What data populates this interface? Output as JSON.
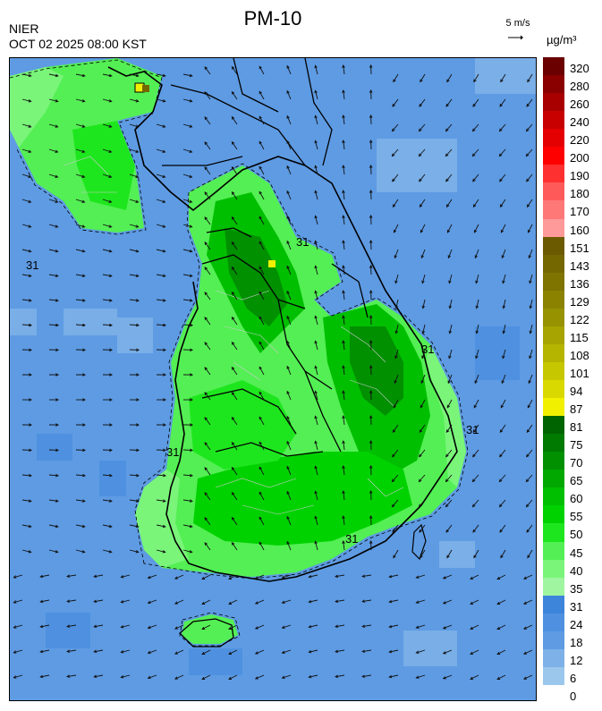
{
  "header": {
    "title": "PM-10",
    "agency": "NIER",
    "timestamp": "OCT 02 2025 08:00 KST",
    "wind_reference": "5 m/s",
    "unit": "µg/m³"
  },
  "map": {
    "contour_label": "31",
    "arrow_color": "#111111",
    "land_outline_color": "#000000",
    "district_line_color": "#cccccc"
  },
  "legend": {
    "levels": [
      {
        "label": "320",
        "color": "#6b0000"
      },
      {
        "label": "280",
        "color": "#8a0000"
      },
      {
        "label": "260",
        "color": "#a80000"
      },
      {
        "label": "240",
        "color": "#c80000"
      },
      {
        "label": "220",
        "color": "#e40000"
      },
      {
        "label": "200",
        "color": "#ff0000"
      },
      {
        "label": "190",
        "color": "#ff3030"
      },
      {
        "label": "180",
        "color": "#ff5a5a"
      },
      {
        "label": "170",
        "color": "#ff7878"
      },
      {
        "label": "160",
        "color": "#ff9a9a"
      },
      {
        "label": "151",
        "color": "#6b5a00"
      },
      {
        "label": "143",
        "color": "#756700"
      },
      {
        "label": "136",
        "color": "#7f7400"
      },
      {
        "label": "129",
        "color": "#8b8300"
      },
      {
        "label": "122",
        "color": "#979200"
      },
      {
        "label": "115",
        "color": "#a7a300"
      },
      {
        "label": "108",
        "color": "#b5b500"
      },
      {
        "label": "101",
        "color": "#c7c700"
      },
      {
        "label": "94",
        "color": "#d9d900"
      },
      {
        "label": "87",
        "color": "#f0f000"
      },
      {
        "label": "81",
        "color": "#006400"
      },
      {
        "label": "75",
        "color": "#007a00"
      },
      {
        "label": "70",
        "color": "#009000"
      },
      {
        "label": "65",
        "color": "#00a800"
      },
      {
        "label": "60",
        "color": "#00bf00"
      },
      {
        "label": "55",
        "color": "#00d200"
      },
      {
        "label": "50",
        "color": "#1ee61e"
      },
      {
        "label": "45",
        "color": "#54ef54"
      },
      {
        "label": "40",
        "color": "#7af57a"
      },
      {
        "label": "35",
        "color": "#a0f5a0"
      },
      {
        "label": "31",
        "color": "#3d84db"
      },
      {
        "label": "24",
        "color": "#4f91e0"
      },
      {
        "label": "18",
        "color": "#5e9be3"
      },
      {
        "label": "12",
        "color": "#7db1e8"
      },
      {
        "label": "6",
        "color": "#9cc7ec"
      },
      {
        "label": "0",
        "color": "#ffffff"
      }
    ]
  }
}
